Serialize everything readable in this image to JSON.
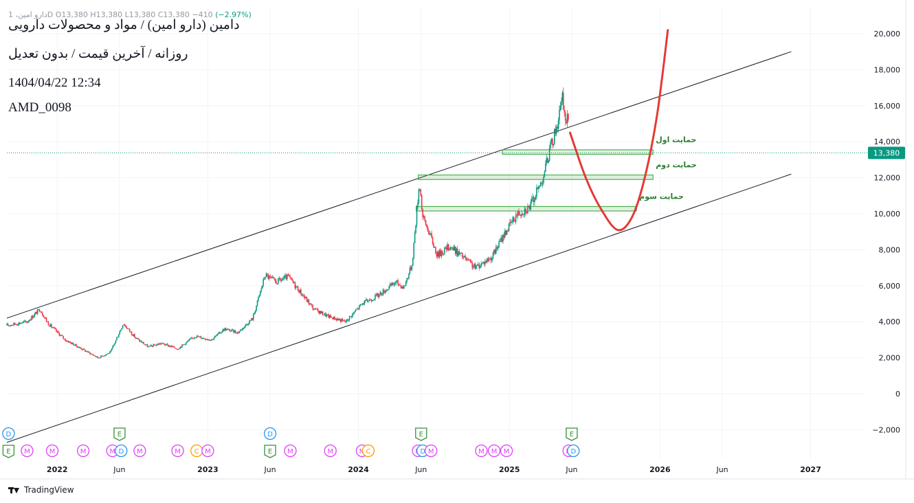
{
  "header": {
    "ohlc_line": "دارو امین، 1D  O13,380  H13,380  L13,380  C13,380  −410",
    "change": "(−2.97%)",
    "title": "دامین (دارو امین) / مواد و محصولات دارویی",
    "subtitle": "روزانه / آخرین قیمت / بدون تعدیل",
    "datetime": "1404/04/22 12:34",
    "code": "AMD_0098"
  },
  "footer": {
    "brand": "TradingView"
  },
  "colors": {
    "up": "#089981",
    "down": "#f23645",
    "channel": "#131722",
    "zone": "#4caf50",
    "projection": "#e53935",
    "grid": "#f0f3fa",
    "price_label_bg": "#089981",
    "event_d": "#2196f3",
    "event_e": "#388e3c",
    "event_m": "#e040fb",
    "event_c": "#ff9800"
  },
  "chart_data": {
    "type": "candlestick",
    "title": "دامین (دارو امین) / مواد و محصولات دارویی",
    "y_axis": {
      "range": [
        -2800,
        21000
      ],
      "ticks": [
        -2000,
        0,
        2000,
        4000,
        6000,
        8000,
        10000,
        12000,
        14000,
        16000,
        18000,
        20000
      ],
      "tick_labels": [
        "−2,000",
        "0",
        "2,000",
        "4,000",
        "6,000",
        "8,000",
        "10,000",
        "12,000",
        "14,000",
        "16,000",
        "18,000",
        "20,000"
      ]
    },
    "x_axis": {
      "range": [
        "2021-09-01",
        "2027-05-15"
      ],
      "ticks": [
        {
          "date": "2022-01-01",
          "label": "2022",
          "bold": true
        },
        {
          "date": "2022-06-01",
          "label": "Jun",
          "bold": false
        },
        {
          "date": "2023-01-01",
          "label": "2023",
          "bold": true
        },
        {
          "date": "2023-06-01",
          "label": "Jun",
          "bold": false
        },
        {
          "date": "2024-01-01",
          "label": "2024",
          "bold": true
        },
        {
          "date": "2024-06-01",
          "label": "Jun",
          "bold": false
        },
        {
          "date": "2025-01-01",
          "label": "2025",
          "bold": true
        },
        {
          "date": "2025-06-01",
          "label": "Jun",
          "bold": false
        },
        {
          "date": "2026-01-01",
          "label": "2026",
          "bold": true
        },
        {
          "date": "2026-06-01",
          "label": "Jun",
          "bold": false
        },
        {
          "date": "2027-01-01",
          "label": "2027",
          "bold": true
        }
      ]
    },
    "last_price": {
      "value": 13380,
      "label": "13,380"
    },
    "price_path": [
      [
        "2021-09-01",
        3800
      ],
      [
        "2021-10-20",
        4000
      ],
      [
        "2021-11-20",
        4700
      ],
      [
        "2021-12-10",
        3900
      ],
      [
        "2022-01-20",
        3000
      ],
      [
        "2022-03-01",
        2500
      ],
      [
        "2022-04-10",
        2000
      ],
      [
        "2022-05-10",
        2300
      ],
      [
        "2022-06-10",
        3900
      ],
      [
        "2022-07-10",
        3100
      ],
      [
        "2022-08-10",
        2600
      ],
      [
        "2022-09-10",
        2800
      ],
      [
        "2022-10-20",
        2500
      ],
      [
        "2022-12-01",
        3200
      ],
      [
        "2023-01-10",
        3000
      ],
      [
        "2023-02-10",
        3600
      ],
      [
        "2023-03-15",
        3400
      ],
      [
        "2023-04-20",
        4200
      ],
      [
        "2023-05-20",
        6600
      ],
      [
        "2023-06-15",
        6200
      ],
      [
        "2023-07-15",
        6500
      ],
      [
        "2023-08-15",
        5600
      ],
      [
        "2023-09-15",
        4700
      ],
      [
        "2023-10-20",
        4300
      ],
      [
        "2023-12-01",
        4000
      ],
      [
        "2024-01-10",
        5000
      ],
      [
        "2024-02-20",
        5500
      ],
      [
        "2024-04-01",
        6200
      ],
      [
        "2024-04-20",
        5900
      ],
      [
        "2024-05-10",
        7200
      ],
      [
        "2024-05-28",
        11800
      ],
      [
        "2024-06-05",
        9800
      ],
      [
        "2024-06-20",
        9000
      ],
      [
        "2024-07-10",
        7700
      ],
      [
        "2024-08-10",
        8200
      ],
      [
        "2024-09-10",
        7600
      ],
      [
        "2024-10-10",
        7000
      ],
      [
        "2024-11-20",
        7600
      ],
      [
        "2024-12-20",
        8900
      ],
      [
        "2025-01-20",
        10000
      ],
      [
        "2025-02-20",
        10400
      ],
      [
        "2025-03-20",
        11800
      ],
      [
        "2025-04-10",
        13600
      ],
      [
        "2025-04-25",
        14800
      ],
      [
        "2025-05-10",
        16400
      ],
      [
        "2025-05-18",
        15000
      ],
      [
        "2025-05-25",
        15400
      ]
    ],
    "channel_lines": [
      {
        "from": [
          "2021-09-01",
          4200
        ],
        "to": [
          "2026-11-15",
          19000
        ]
      },
      {
        "from": [
          "2021-09-01",
          -2700
        ],
        "to": [
          "2026-11-15",
          12200
        ]
      }
    ],
    "support_zones": [
      {
        "label": "حمایت اول",
        "x1": "2024-12-15",
        "x2": "2025-12-15",
        "y1": 13300,
        "y2": 13550
      },
      {
        "label": "حمایت دوم",
        "x1": "2024-05-25",
        "x2": "2025-12-15",
        "y1": 11900,
        "y2": 12150
      },
      {
        "label": "حمایت سوم",
        "x1": "2024-05-20",
        "x2": "2025-11-05",
        "y1": 10150,
        "y2": 10400
      }
    ],
    "projection_curve": [
      [
        "2025-05-28",
        14500
      ],
      [
        "2025-07-05",
        12000
      ],
      [
        "2025-08-10",
        10300
      ],
      [
        "2025-09-20",
        9100
      ],
      [
        "2025-10-25",
        9800
      ],
      [
        "2025-11-25",
        12000
      ],
      [
        "2025-12-25",
        15500
      ],
      [
        "2026-01-20",
        20200
      ]
    ],
    "events_row1": [
      {
        "type": "D",
        "date": "2021-09-05"
      },
      {
        "type": "E",
        "date": "2022-06-01"
      },
      {
        "type": "D",
        "date": "2023-06-01"
      },
      {
        "type": "E",
        "date": "2024-06-01"
      },
      {
        "type": "E",
        "date": "2025-06-01"
      }
    ],
    "events_row2": [
      {
        "type": "E",
        "date": "2021-09-05"
      },
      {
        "type": "M",
        "date": "2021-10-20"
      },
      {
        "type": "M",
        "date": "2021-12-20"
      },
      {
        "type": "M",
        "date": "2022-03-05"
      },
      {
        "type": "M",
        "date": "2022-05-15"
      },
      {
        "type": "D",
        "date": "2022-06-05"
      },
      {
        "type": "M",
        "date": "2022-07-20"
      },
      {
        "type": "M",
        "date": "2022-10-20"
      },
      {
        "type": "C",
        "date": "2022-12-05"
      },
      {
        "type": "M",
        "date": "2023-01-01"
      },
      {
        "type": "E",
        "date": "2023-06-01"
      },
      {
        "type": "M",
        "date": "2023-07-20"
      },
      {
        "type": "M",
        "date": "2023-10-25"
      },
      {
        "type": "M",
        "date": "2024-01-10"
      },
      {
        "type": "C",
        "date": "2024-01-25"
      },
      {
        "type": "M",
        "date": "2024-05-25"
      },
      {
        "type": "D",
        "date": "2024-06-05"
      },
      {
        "type": "M",
        "date": "2024-06-25"
      },
      {
        "type": "M",
        "date": "2024-10-25"
      },
      {
        "type": "M",
        "date": "2024-11-25"
      },
      {
        "type": "M",
        "date": "2024-12-25"
      },
      {
        "type": "M",
        "date": "2025-05-25"
      },
      {
        "type": "D",
        "date": "2025-06-05"
      }
    ]
  }
}
